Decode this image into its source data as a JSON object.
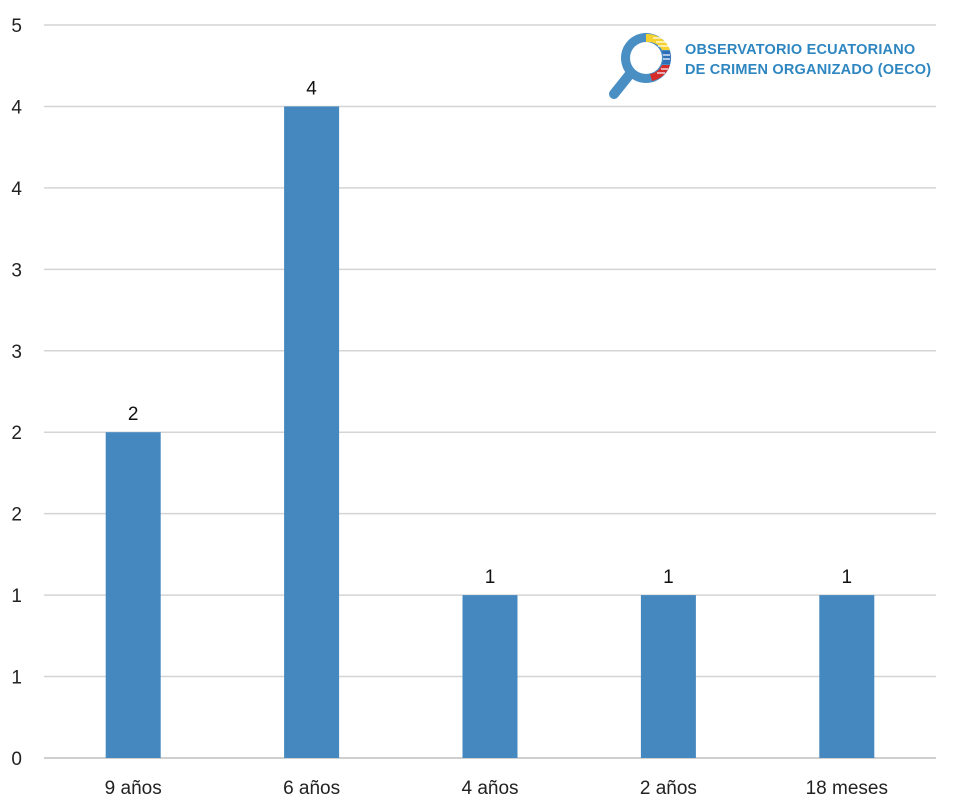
{
  "chart_data": {
    "type": "bar",
    "categories": [
      "9 años",
      "6 años",
      "4 años",
      "2 años",
      "18 meses"
    ],
    "values": [
      2,
      4,
      1,
      1,
      1
    ],
    "data_labels": [
      "2",
      "4",
      "1",
      "1",
      "1"
    ],
    "y_tick_labels": [
      "0",
      "1",
      "1",
      "2",
      "2",
      "3",
      "3",
      "4",
      "4",
      "5"
    ],
    "ylim": [
      0,
      4.5
    ],
    "grid": true,
    "bar_color": "#4488bf",
    "title": "",
    "xlabel": "",
    "ylabel": ""
  },
  "logo": {
    "line1": "OBSERVATORIO ECUATORIANO",
    "line2": "DE CRIMEN ORGANIZADO (OECO)",
    "text_color": "#2e86c1",
    "icon_color": "#4a8fc4",
    "flag_colors": [
      "#f5d22e",
      "#2e6fb8",
      "#d62b2b"
    ]
  }
}
